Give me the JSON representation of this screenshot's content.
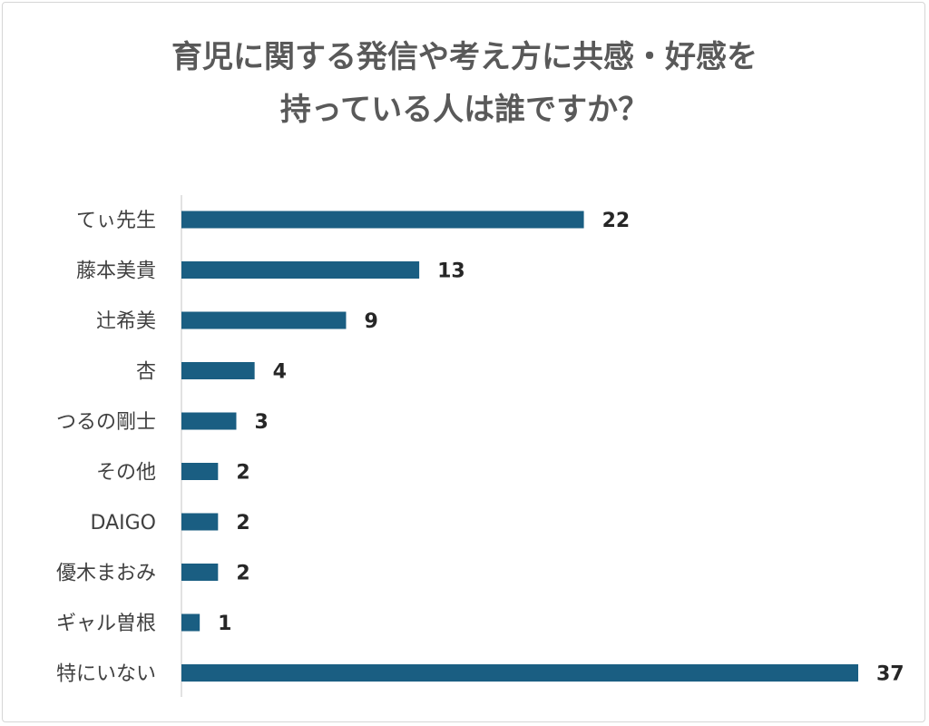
{
  "chart_data": {
    "type": "bar",
    "orientation": "horizontal",
    "title_lines": [
      "育児に関する発信や考え方に共感・好感を",
      "持っている人は誰ですか？"
    ],
    "categories": [
      "てぃ先生",
      "藤本美貴",
      "辻希美",
      "杏",
      "つるの剛士",
      "その他",
      "DAIGO",
      "優木まおみ",
      "ギャル曽根",
      "特にいない"
    ],
    "values": [
      22,
      13,
      9,
      4,
      3,
      2,
      2,
      2,
      1,
      37
    ],
    "bar_color": "#1a5e82",
    "xlim": [
      0,
      37
    ],
    "grid": false,
    "legend": "none"
  }
}
